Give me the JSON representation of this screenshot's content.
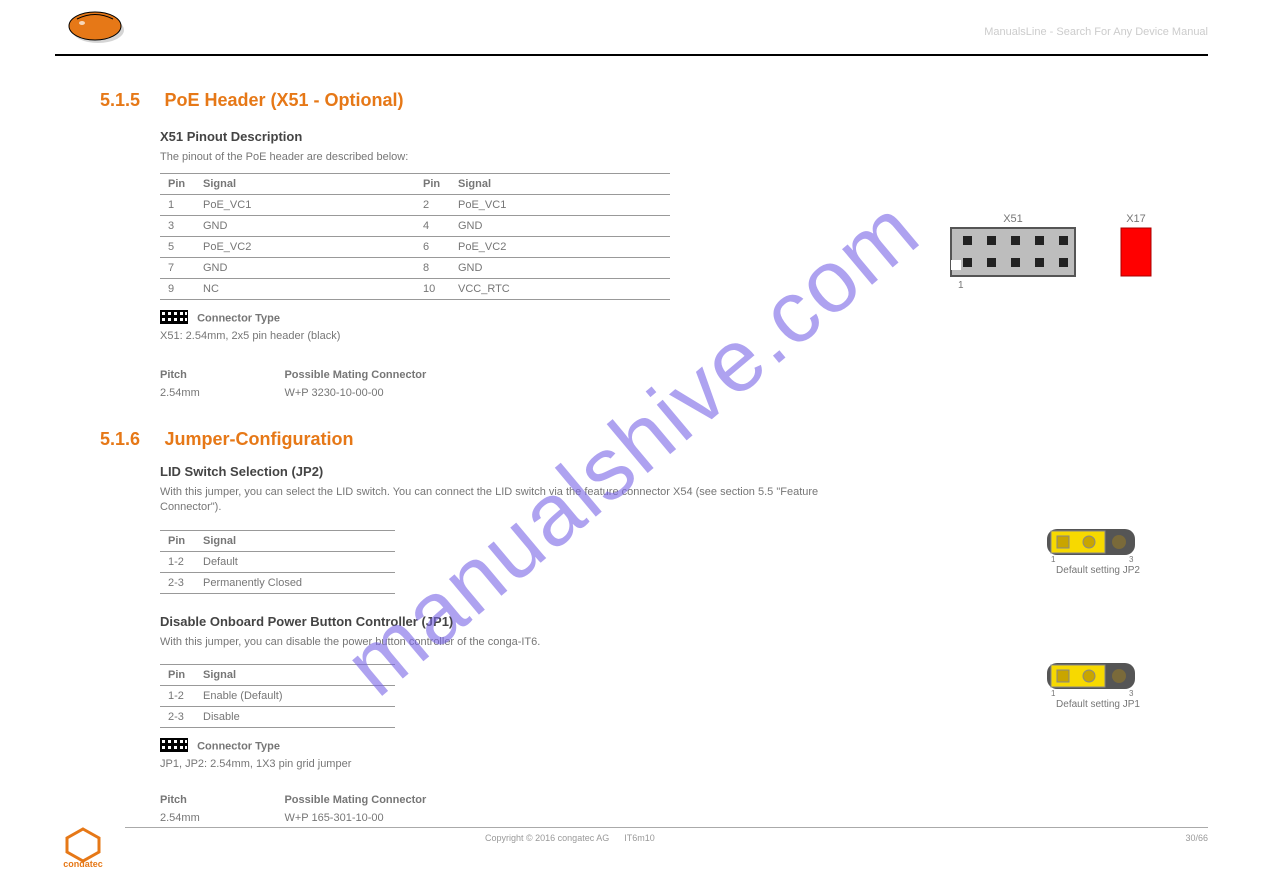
{
  "header_right": "ManualsLine - Search For Any Device Manual",
  "watermark": "manualshive.com",
  "section_5_1_5": {
    "num": "5.1.5",
    "title": "PoE Header (X51 - Optional)",
    "subtitle": "X51 Pinout Description",
    "intro": "The pinout of the PoE header are described below:",
    "headers": [
      "Pin",
      "Signal",
      "Pin",
      "Signal"
    ],
    "rows": [
      [
        "1",
        "PoE_VC1",
        "2",
        "PoE_VC1"
      ],
      [
        "3",
        "GND",
        "4",
        "GND"
      ],
      [
        "5",
        "PoE_VC2",
        "6",
        "PoE_VC2"
      ],
      [
        "7",
        "GND",
        "8",
        "GND"
      ],
      [
        "9",
        "NC",
        "10",
        "VCC_RTC"
      ]
    ],
    "connector_type_label": "Connector Type",
    "connector_type": "X51: 2.54mm, 2x5 pin header (black)",
    "pitch_label": "Pitch",
    "mate_label": "Possible Mating Connector",
    "pitch": "2.54mm",
    "mate": "W+P 3230-10-00-00"
  },
  "section_5_1_6": {
    "num": "5.1.6",
    "title": "Jumper-Configuration",
    "lid_heading": "LID Switch Selection (JP2)",
    "lid_text": "With this jumper, you can select the LID switch. You can connect the LID switch via the feature connector X54 (see section 5.5 \"Feature Connector\").",
    "jp2_headers": [
      "Pin",
      "Signal"
    ],
    "jp2_rows": [
      [
        "1-2",
        "Default"
      ],
      [
        "2-3",
        "Permanently Closed"
      ]
    ],
    "jp2_default": "Default setting JP2",
    "disable_heading": "Disable Onboard Power Button Controller (JP1)",
    "disable_text": "With this jumper, you can disable the power button controller of the conga-IT6.",
    "jp1_headers": [
      "Pin",
      "Signal"
    ],
    "jp1_rows": [
      [
        "1-2",
        "Enable (Default)"
      ],
      [
        "2-3",
        "Disable"
      ]
    ],
    "jp1_default": "Default setting JP1",
    "connector_type_label": "Connector Type",
    "connector_type": "JP1, JP2: 2.54mm, 1X3 pin grid jumper",
    "pitch_label": "Pitch",
    "mate_label": "Possible Mating Connector",
    "pitch": "2.54mm",
    "mate": "W+P 165-301-10-00"
  },
  "diagram": {
    "x51_label": "X51",
    "red_label": "X17",
    "pin1": "1"
  },
  "footer": {
    "text": "Copyright © 2016 congatec AG",
    "doc": "IT6m10",
    "page": "30/66"
  },
  "colors": {
    "orange": "#e67817",
    "yellow": "#f7d900",
    "red": "#ff0000",
    "grey": "#bdbdbd",
    "darkborder": "#555555"
  }
}
